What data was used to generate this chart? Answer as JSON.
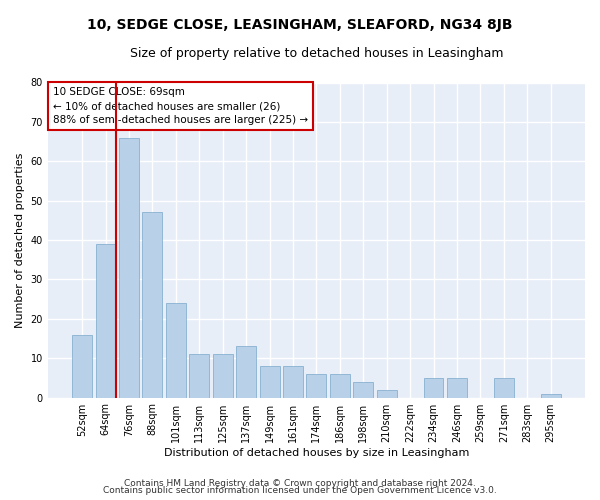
{
  "title1": "10, SEDGE CLOSE, LEASINGHAM, SLEAFORD, NG34 8JB",
  "title2": "Size of property relative to detached houses in Leasingham",
  "xlabel": "Distribution of detached houses by size in Leasingham",
  "ylabel": "Number of detached properties",
  "categories": [
    "52sqm",
    "64sqm",
    "76sqm",
    "88sqm",
    "101sqm",
    "113sqm",
    "125sqm",
    "137sqm",
    "149sqm",
    "161sqm",
    "174sqm",
    "186sqm",
    "198sqm",
    "210sqm",
    "222sqm",
    "234sqm",
    "246sqm",
    "259sqm",
    "271sqm",
    "283sqm",
    "295sqm"
  ],
  "values": [
    16,
    39,
    66,
    47,
    24,
    11,
    11,
    13,
    8,
    8,
    6,
    6,
    4,
    2,
    0,
    5,
    5,
    0,
    5,
    0,
    1
  ],
  "bar_color": "#b8d0e8",
  "bar_edge_color": "#7aa8cc",
  "vline_color": "#cc0000",
  "annotation_lines": [
    "10 SEDGE CLOSE: 69sqm",
    "← 10% of detached houses are smaller (26)",
    "88% of semi-detached houses are larger (225) →"
  ],
  "annotation_box_color": "#ffffff",
  "annotation_box_edge": "#cc0000",
  "ylim": [
    0,
    80
  ],
  "yticks": [
    0,
    10,
    20,
    30,
    40,
    50,
    60,
    70,
    80
  ],
  "background_color": "#e8eef8",
  "grid_color": "#ffffff",
  "footer1": "Contains HM Land Registry data © Crown copyright and database right 2024.",
  "footer2": "Contains public sector information licensed under the Open Government Licence v3.0.",
  "title1_fontsize": 10,
  "title2_fontsize": 9,
  "axis_label_fontsize": 8,
  "tick_fontsize": 7,
  "annotation_fontsize": 7.5,
  "footer_fontsize": 6.5
}
